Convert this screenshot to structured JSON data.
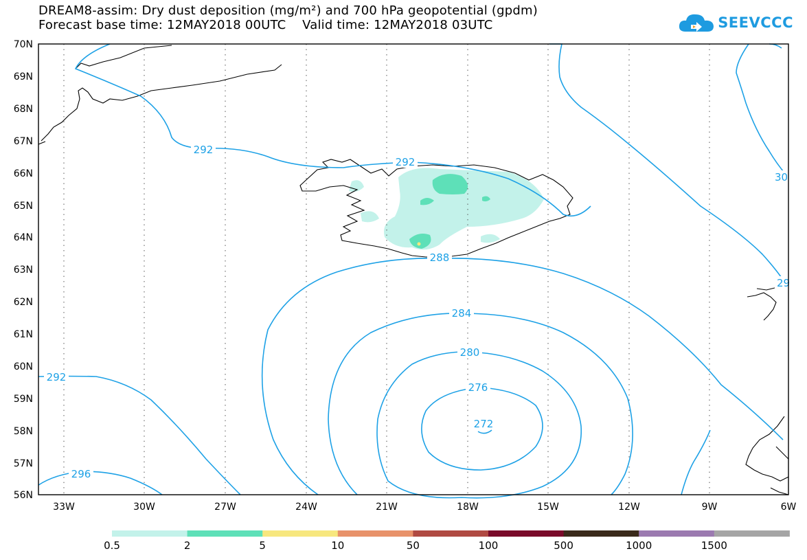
{
  "header": {
    "line1": "DREAM8-assim: Dry dust deposition (mg/m²) and 700 hPa geopotential (gpdm)",
    "line2": "Forecast base time: 12MAY2018 00UTC    Valid time: 12MAY2018 03UTC"
  },
  "logo": {
    "text": "SEEVCCC",
    "color": "#1e9be0"
  },
  "map": {
    "lat_labels": [
      "70N",
      "69N",
      "68N",
      "67N",
      "66N",
      "65N",
      "64N",
      "63N",
      "62N",
      "61N",
      "60N",
      "59N",
      "58N",
      "57N",
      "56N"
    ],
    "lon_labels": [
      "33W",
      "30W",
      "27W",
      "24W",
      "21W",
      "18W",
      "15W",
      "12W",
      "9W",
      "6W"
    ],
    "contour_labels": [
      "292",
      "292",
      "292",
      "288",
      "284",
      "280",
      "276",
      "272",
      "296",
      "30",
      "29"
    ],
    "contour_color": "#1da1e6"
  },
  "colorbar": {
    "labels": [
      "0.5",
      "2",
      "5",
      "10",
      "50",
      "100",
      "500",
      "1000",
      "1500"
    ],
    "colors": [
      "#c3f2ea",
      "#5ee0b8",
      "#f7e77e",
      "#e8926a",
      "#b04a42",
      "#7a0a2a",
      "#3a2a1a",
      "#9b7ab0",
      "#a5a5a5"
    ]
  }
}
